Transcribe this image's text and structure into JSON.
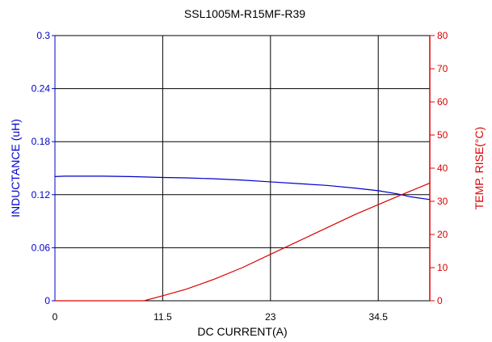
{
  "chart_data": {
    "type": "line",
    "title": "SSL1005M-R15MF-R39",
    "xlabel": "DC CURRENT(A)",
    "ylabel_left": "INDUCTANCE (uH)",
    "ylabel_right": "TEMP. RISE(°C)",
    "xlim": [
      0,
      40
    ],
    "ylim_left": [
      0,
      0.3
    ],
    "ylim_right": [
      0,
      80
    ],
    "x_ticks": [
      0,
      11.5,
      23,
      34.5
    ],
    "x_tick_labels": [
      "0",
      "11.5",
      "23",
      "34.5"
    ],
    "y_left_ticks": [
      0,
      0.06,
      0.12,
      0.18,
      0.24,
      0.3
    ],
    "y_left_tick_labels": [
      "0",
      "0.06",
      "0.12",
      "0.18",
      "0.24",
      "0.3"
    ],
    "y_right_ticks": [
      0,
      10,
      20,
      30,
      40,
      50,
      60,
      70,
      80
    ],
    "y_right_tick_labels": [
      "0",
      "10",
      "20",
      "30",
      "40",
      "50",
      "60",
      "70",
      "80"
    ],
    "grid": true,
    "colors": {
      "inductance": "#0000cc",
      "temperature": "#dd0000",
      "left_axis": "#0000cc",
      "right_axis": "#dd0000",
      "grid": "#000000"
    },
    "series": [
      {
        "axis": "left",
        "x": [
          0,
          1,
          3,
          5,
          8,
          11.5,
          14,
          17,
          20,
          23,
          26,
          29,
          32,
          34.5,
          36.5,
          38,
          40
        ],
        "values": [
          0.1405,
          0.141,
          0.141,
          0.141,
          0.1405,
          0.1395,
          0.139,
          0.138,
          0.1365,
          0.1345,
          0.1325,
          0.1305,
          0.1275,
          0.1245,
          0.121,
          0.1175,
          0.1145
        ]
      },
      {
        "axis": "right",
        "x": [
          0,
          5,
          9.5,
          11.5,
          14,
          17,
          20,
          23,
          26,
          29,
          32,
          34.5,
          37,
          40
        ],
        "values": [
          0,
          0,
          0,
          1.5,
          3.5,
          6.5,
          10,
          14,
          18,
          22,
          26,
          29,
          32,
          35.5
        ]
      }
    ]
  }
}
